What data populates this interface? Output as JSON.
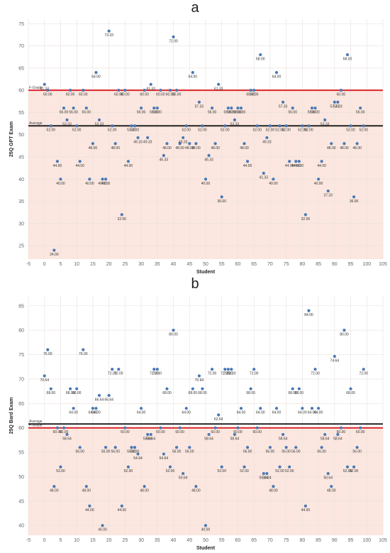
{
  "colors": {
    "band": "#fbe7df",
    "point": "#4a78b4",
    "grade_line": "#d9262b",
    "average_line": "#222222",
    "grid": "#e9e0dc"
  },
  "chart_data": [
    {
      "panel": "a",
      "type": "scatter",
      "xlabel": "Student",
      "ylabel": "25Q GPT Exam",
      "xlim": [
        -5,
        105
      ],
      "ylim": [
        22,
        76
      ],
      "x_ticks": [
        -5,
        0,
        5,
        10,
        15,
        20,
        25,
        30,
        35,
        40,
        45,
        50,
        55,
        60,
        65,
        70,
        75,
        80,
        85,
        90,
        95,
        100,
        105
      ],
      "y_ticks": [
        25,
        30,
        35,
        40,
        45,
        50,
        55,
        60,
        65,
        70,
        75
      ],
      "grade_line": {
        "label": "F-Grade",
        "value": 60
      },
      "average_line": {
        "label": "Average",
        "value": 52
      },
      "points": [
        {
          "x": 0,
          "y": 61.33,
          "label": "61.33"
        },
        {
          "x": 1,
          "y": 60,
          "label": "60.00"
        },
        {
          "x": 2,
          "y": 52,
          "label": "52.00"
        },
        {
          "x": 3,
          "y": 24,
          "label": "24.00"
        },
        {
          "x": 4,
          "y": 44,
          "label": "44.00"
        },
        {
          "x": 5,
          "y": 40,
          "label": "40.00"
        },
        {
          "x": 6,
          "y": 56,
          "label": "56.00"
        },
        {
          "x": 7,
          "y": 53.33,
          "label": "53.33"
        },
        {
          "x": 8,
          "y": 60,
          "label": "60.00"
        },
        {
          "x": 9,
          "y": 56,
          "label": "56.00"
        },
        {
          "x": 10,
          "y": 52,
          "label": "52.00"
        },
        {
          "x": 11,
          "y": 44,
          "label": "44.00"
        },
        {
          "x": 12,
          "y": 60,
          "label": "60.00"
        },
        {
          "x": 13,
          "y": 56,
          "label": "56.00"
        },
        {
          "x": 14,
          "y": 40,
          "label": "40.00"
        },
        {
          "x": 15,
          "y": 48,
          "label": "48.00"
        },
        {
          "x": 16,
          "y": 64,
          "label": "64.00"
        },
        {
          "x": 17,
          "y": 53.33,
          "label": "53.33"
        },
        {
          "x": 18,
          "y": 40,
          "label": "40.00"
        },
        {
          "x": 19,
          "y": 40,
          "label": "40.00"
        },
        {
          "x": 20,
          "y": 73.33,
          "label": "73.33"
        },
        {
          "x": 21,
          "y": 52,
          "label": "52.00"
        },
        {
          "x": 22,
          "y": 48,
          "label": "48.00"
        },
        {
          "x": 23,
          "y": 60,
          "label": "60.00"
        },
        {
          "x": 24,
          "y": 32,
          "label": "32.00"
        },
        {
          "x": 25,
          "y": 60,
          "label": "60.00"
        },
        {
          "x": 26,
          "y": 44,
          "label": "44.00"
        },
        {
          "x": 27,
          "y": 52,
          "label": "52.00"
        },
        {
          "x": 28,
          "y": 52,
          "label": "52.00"
        },
        {
          "x": 29,
          "y": 49.33,
          "label": "49.33"
        },
        {
          "x": 30,
          "y": 56,
          "label": "56.00"
        },
        {
          "x": 31,
          "y": 60,
          "label": "60.00"
        },
        {
          "x": 32,
          "y": 49.33,
          "label": "49.33"
        },
        {
          "x": 33,
          "y": 61.33,
          "label": "61.33"
        },
        {
          "x": 34,
          "y": 56,
          "label": "56.00"
        },
        {
          "x": 35,
          "y": 56,
          "label": "56.00"
        },
        {
          "x": 36,
          "y": 60,
          "label": "60.00"
        },
        {
          "x": 37,
          "y": 45.33,
          "label": "45.33"
        },
        {
          "x": 38,
          "y": 48,
          "label": "48.00"
        },
        {
          "x": 39,
          "y": 60,
          "label": "60.00"
        },
        {
          "x": 40,
          "y": 72,
          "label": "72.00"
        },
        {
          "x": 41,
          "y": 60,
          "label": "60.00"
        },
        {
          "x": 42,
          "y": 48,
          "label": "48.00"
        },
        {
          "x": 43,
          "y": 49.33,
          "label": "49.33"
        },
        {
          "x": 44,
          "y": 52,
          "label": "52.00"
        },
        {
          "x": 45,
          "y": 48,
          "label": "48.00"
        },
        {
          "x": 46,
          "y": 64,
          "label": "64.00"
        },
        {
          "x": 47,
          "y": 48,
          "label": "48.00"
        },
        {
          "x": 48,
          "y": 57.33,
          "label": "57.33"
        },
        {
          "x": 49,
          "y": 52,
          "label": "52.00"
        },
        {
          "x": 50,
          "y": 40,
          "label": "40.00"
        },
        {
          "x": 51,
          "y": 45.33,
          "label": "45.33"
        },
        {
          "x": 52,
          "y": 56,
          "label": "56.00"
        },
        {
          "x": 53,
          "y": 48,
          "label": "48.00"
        },
        {
          "x": 54,
          "y": 61.33,
          "label": "61.33"
        },
        {
          "x": 55,
          "y": 36,
          "label": "36.00"
        },
        {
          "x": 56,
          "y": 52,
          "label": "52.00"
        },
        {
          "x": 57,
          "y": 56,
          "label": "56.00"
        },
        {
          "x": 58,
          "y": 56,
          "label": "56.00"
        },
        {
          "x": 59,
          "y": 53.33,
          "label": "53.33"
        },
        {
          "x": 60,
          "y": 56,
          "label": "56.00"
        },
        {
          "x": 61,
          "y": 56,
          "label": "56.00"
        },
        {
          "x": 62,
          "y": 48,
          "label": "48.00"
        },
        {
          "x": 63,
          "y": 44,
          "label": "44.00"
        },
        {
          "x": 64,
          "y": 60,
          "label": "60.00"
        },
        {
          "x": 65,
          "y": 60,
          "label": "60.00"
        },
        {
          "x": 66,
          "y": 52,
          "label": "52.00"
        },
        {
          "x": 67,
          "y": 68,
          "label": "68.00"
        },
        {
          "x": 68,
          "y": 41.33,
          "label": "41.33"
        },
        {
          "x": 69,
          "y": 49.33,
          "label": "49.33"
        },
        {
          "x": 70,
          "y": 52,
          "label": "52.00"
        },
        {
          "x": 71,
          "y": 40,
          "label": "40.00"
        },
        {
          "x": 72,
          "y": 64,
          "label": "64.00"
        },
        {
          "x": 73,
          "y": 52,
          "label": "52.00"
        },
        {
          "x": 74,
          "y": 57.33,
          "label": "57.33"
        },
        {
          "x": 75,
          "y": 52,
          "label": "52.00"
        },
        {
          "x": 76,
          "y": 44,
          "label": "44.00"
        },
        {
          "x": 77,
          "y": 56,
          "label": "56.00"
        },
        {
          "x": 78,
          "y": 44,
          "label": "44.00"
        },
        {
          "x": 79,
          "y": 44,
          "label": "44.00"
        },
        {
          "x": 80,
          "y": 52,
          "label": "52.00"
        },
        {
          "x": 81,
          "y": 32,
          "label": "32.00"
        },
        {
          "x": 82,
          "y": 52,
          "label": "52.00"
        },
        {
          "x": 83,
          "y": 56,
          "label": "56.00"
        },
        {
          "x": 84,
          "y": 56,
          "label": "56.00"
        },
        {
          "x": 85,
          "y": 40,
          "label": "40.00"
        },
        {
          "x": 86,
          "y": 44,
          "label": "44.00"
        },
        {
          "x": 87,
          "y": 53.33,
          "label": "53.33"
        },
        {
          "x": 88,
          "y": 37.33,
          "label": "37.33"
        },
        {
          "x": 89,
          "y": 48,
          "label": "48.00"
        },
        {
          "x": 90,
          "y": 57.33,
          "label": "57.33"
        },
        {
          "x": 91,
          "y": 57.33,
          "label": "57.33"
        },
        {
          "x": 92,
          "y": 60,
          "label": "60.00"
        },
        {
          "x": 93,
          "y": 48,
          "label": "48.00"
        },
        {
          "x": 94,
          "y": 68,
          "label": "68.00"
        },
        {
          "x": 95,
          "y": 52,
          "label": "52.00"
        },
        {
          "x": 96,
          "y": 36,
          "label": "36.00"
        },
        {
          "x": 97,
          "y": 48,
          "label": "48.00"
        },
        {
          "x": 98,
          "y": 56,
          "label": "56.00"
        },
        {
          "x": 99,
          "y": 52,
          "label": "52.00"
        }
      ]
    },
    {
      "panel": "b",
      "type": "scatter",
      "xlabel": "Student",
      "ylabel": "25Q Bard Exam",
      "xlim": [
        -5,
        105
      ],
      "ylim": [
        38,
        87
      ],
      "x_ticks": [
        -5,
        0,
        5,
        10,
        15,
        20,
        25,
        30,
        35,
        40,
        45,
        50,
        55,
        60,
        65,
        70,
        75,
        80,
        85,
        90,
        95,
        100,
        105
      ],
      "y_ticks": [
        40,
        45,
        50,
        55,
        60,
        65,
        70,
        75,
        80,
        85
      ],
      "grade_line": {
        "label": "F-Grade",
        "value": 60
      },
      "average_line": {
        "label": "Average",
        "value": 60.8
      },
      "points": [
        {
          "x": 0,
          "y": 70.64,
          "label": "70.64"
        },
        {
          "x": 1,
          "y": 76,
          "label": "76.00"
        },
        {
          "x": 2,
          "y": 68,
          "label": "68.00"
        },
        {
          "x": 3,
          "y": 48,
          "label": "48.00"
        },
        {
          "x": 4,
          "y": 60,
          "label": "60.00"
        },
        {
          "x": 5,
          "y": 52,
          "label": "52.00"
        },
        {
          "x": 6,
          "y": 60,
          "label": "60.00"
        },
        {
          "x": 7,
          "y": 58.64,
          "label": "58.64"
        },
        {
          "x": 8,
          "y": 68,
          "label": "68.00"
        },
        {
          "x": 9,
          "y": 64,
          "label": "64.00"
        },
        {
          "x": 10,
          "y": 68,
          "label": "68.00"
        },
        {
          "x": 11,
          "y": 56,
          "label": "56.00"
        },
        {
          "x": 12,
          "y": 76,
          "label": "76.00"
        },
        {
          "x": 13,
          "y": 48,
          "label": "48.00"
        },
        {
          "x": 14,
          "y": 44,
          "label": "44.00"
        },
        {
          "x": 15,
          "y": 64,
          "label": "64.00"
        },
        {
          "x": 16,
          "y": 64,
          "label": "64.00"
        },
        {
          "x": 17,
          "y": 66.64,
          "label": "66.64"
        },
        {
          "x": 18,
          "y": 40,
          "label": "40.00"
        },
        {
          "x": 19,
          "y": 56,
          "label": "56.00"
        },
        {
          "x": 20,
          "y": 66.64,
          "label": "66.64"
        },
        {
          "x": 21,
          "y": 72,
          "label": "72.00"
        },
        {
          "x": 22,
          "y": 56,
          "label": "56.00"
        },
        {
          "x": 23,
          "y": 72,
          "label": "72.00"
        },
        {
          "x": 24,
          "y": 44,
          "label": "44.00"
        },
        {
          "x": 25,
          "y": 60,
          "label": "60.00"
        },
        {
          "x": 26,
          "y": 52,
          "label": "52.00"
        },
        {
          "x": 27,
          "y": 56,
          "label": "56.00"
        },
        {
          "x": 28,
          "y": 56,
          "label": "56.00"
        },
        {
          "x": 29,
          "y": 54.64,
          "label": "54.64"
        },
        {
          "x": 30,
          "y": 64,
          "label": "64.00"
        },
        {
          "x": 31,
          "y": 48,
          "label": "48.00"
        },
        {
          "x": 32,
          "y": 58.64,
          "label": "58.64"
        },
        {
          "x": 33,
          "y": 58.64,
          "label": "58.64"
        },
        {
          "x": 34,
          "y": 72,
          "label": "72.00"
        },
        {
          "x": 35,
          "y": 72,
          "label": "72.00"
        },
        {
          "x": 36,
          "y": 60,
          "label": "60.00"
        },
        {
          "x": 37,
          "y": 54.64,
          "label": "54.64"
        },
        {
          "x": 38,
          "y": 68,
          "label": "68.00"
        },
        {
          "x": 39,
          "y": 52,
          "label": "52.00"
        },
        {
          "x": 40,
          "y": 80,
          "label": "80.00"
        },
        {
          "x": 41,
          "y": 56,
          "label": "56.00"
        },
        {
          "x": 42,
          "y": 60,
          "label": "60.00"
        },
        {
          "x": 43,
          "y": 50.64,
          "label": "50.64"
        },
        {
          "x": 44,
          "y": 64,
          "label": "64.00"
        },
        {
          "x": 45,
          "y": 56,
          "label": "56.00"
        },
        {
          "x": 46,
          "y": 68,
          "label": "68.00"
        },
        {
          "x": 47,
          "y": 48,
          "label": "48.00"
        },
        {
          "x": 48,
          "y": 70.64,
          "label": "70.64"
        },
        {
          "x": 49,
          "y": 68,
          "label": "68.00"
        },
        {
          "x": 50,
          "y": 40,
          "label": "40.00"
        },
        {
          "x": 51,
          "y": 58.64,
          "label": "58.64"
        },
        {
          "x": 52,
          "y": 72,
          "label": "72.00"
        },
        {
          "x": 53,
          "y": 60,
          "label": "60.00"
        },
        {
          "x": 54,
          "y": 62.64,
          "label": "62.64"
        },
        {
          "x": 55,
          "y": 52,
          "label": "52.00"
        },
        {
          "x": 56,
          "y": 72,
          "label": "72.00"
        },
        {
          "x": 57,
          "y": 72,
          "label": "72.00"
        },
        {
          "x": 58,
          "y": 72,
          "label": "72.00"
        },
        {
          "x": 59,
          "y": 58.64,
          "label": "58.64"
        },
        {
          "x": 60,
          "y": 60,
          "label": "60.00"
        },
        {
          "x": 61,
          "y": 64,
          "label": "64.00"
        },
        {
          "x": 62,
          "y": 52,
          "label": "52.00"
        },
        {
          "x": 63,
          "y": 56,
          "label": "56.00"
        },
        {
          "x": 64,
          "y": 68,
          "label": "68.00"
        },
        {
          "x": 65,
          "y": 72,
          "label": "72.00"
        },
        {
          "x": 66,
          "y": 60,
          "label": "60.00"
        },
        {
          "x": 67,
          "y": 64,
          "label": "64.00"
        },
        {
          "x": 68,
          "y": 50.64,
          "label": "50.64"
        },
        {
          "x": 69,
          "y": 50.64,
          "label": "50.64"
        },
        {
          "x": 70,
          "y": 56,
          "label": "56.00"
        },
        {
          "x": 71,
          "y": 48,
          "label": "48.00"
        },
        {
          "x": 72,
          "y": 64,
          "label": "64.00"
        },
        {
          "x": 73,
          "y": 52,
          "label": "52.00"
        },
        {
          "x": 74,
          "y": 58.64,
          "label": "58.64"
        },
        {
          "x": 75,
          "y": 56,
          "label": "56.00"
        },
        {
          "x": 76,
          "y": 52,
          "label": "52.00"
        },
        {
          "x": 77,
          "y": 68,
          "label": "68.00"
        },
        {
          "x": 78,
          "y": 56,
          "label": "56.00"
        },
        {
          "x": 79,
          "y": 68,
          "label": "68.00"
        },
        {
          "x": 80,
          "y": 64,
          "label": "64.00"
        },
        {
          "x": 81,
          "y": 44,
          "label": "44.00"
        },
        {
          "x": 82,
          "y": 84,
          "label": "84.00"
        },
        {
          "x": 83,
          "y": 64,
          "label": "64.00"
        },
        {
          "x": 84,
          "y": 72,
          "label": "72.00"
        },
        {
          "x": 85,
          "y": 64,
          "label": "64.00"
        },
        {
          "x": 86,
          "y": 56,
          "label": "56.00"
        },
        {
          "x": 87,
          "y": 58.64,
          "label": "58.64"
        },
        {
          "x": 88,
          "y": 50.64,
          "label": "50.64"
        },
        {
          "x": 89,
          "y": 48,
          "label": "48.00"
        },
        {
          "x": 90,
          "y": 74.64,
          "label": "74.64"
        },
        {
          "x": 91,
          "y": 58.64,
          "label": "58.64"
        },
        {
          "x": 92,
          "y": 60,
          "label": "60.00"
        },
        {
          "x": 93,
          "y": 80,
          "label": "80.00"
        },
        {
          "x": 94,
          "y": 52,
          "label": "52.00"
        },
        {
          "x": 95,
          "y": 68,
          "label": "68.00"
        },
        {
          "x": 96,
          "y": 52,
          "label": "52.00"
        },
        {
          "x": 97,
          "y": 56,
          "label": "56.00"
        },
        {
          "x": 98,
          "y": 60,
          "label": "60.00"
        },
        {
          "x": 99,
          "y": 72,
          "label": "72.00"
        }
      ]
    }
  ]
}
